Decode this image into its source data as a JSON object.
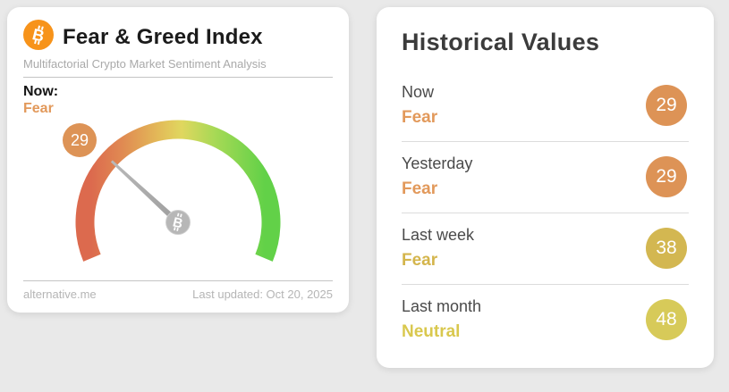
{
  "colors": {
    "page_bg": "#E9E9E9",
    "card_bg": "#FFFFFF",
    "bitcoin_orange": "#F7931A",
    "fear_orange_text": "#E2995B",
    "gold_text": "#D4B54C",
    "yellow_text": "#D9C84E",
    "badge_orange": "#DD9356",
    "badge_gold": "#D3B751",
    "badge_yellow": "#D7CA59",
    "needle_gray": "#A8A8A8",
    "gauge_gradient": [
      "#DC6A4E",
      "#E08A52",
      "#E3B858",
      "#E0D75F",
      "#A5D955",
      "#62D148"
    ]
  },
  "gauge_card": {
    "title": "Fear & Greed Index",
    "subtitle": "Multifactorial Crypto Market Sentiment Analysis",
    "now_label": "Now:",
    "now_classification": "Fear",
    "value_badge": "29",
    "source": "alternative.me",
    "last_updated": "Last updated: Oct 20, 2025"
  },
  "historical_card": {
    "title": "Historical Values",
    "rows": [
      {
        "label": "Now",
        "classification": "Fear",
        "value": "29"
      },
      {
        "label": "Yesterday",
        "classification": "Fear",
        "value": "29"
      },
      {
        "label": "Last week",
        "classification": "Fear",
        "value": "38"
      },
      {
        "label": "Last month",
        "classification": "Neutral",
        "value": "48"
      }
    ]
  },
  "chart_data": {
    "type": "gauge",
    "title": "Fear & Greed Index",
    "value": 29,
    "classification": "Fear",
    "range": [
      0,
      100
    ],
    "arc_degrees": 225,
    "color_scale": "0 = red (Extreme Fear) through yellow (Neutral) to 100 = green (Extreme Greed)",
    "historical": [
      {
        "label": "Now",
        "value": 29,
        "classification": "Fear"
      },
      {
        "label": "Yesterday",
        "value": 29,
        "classification": "Fear"
      },
      {
        "label": "Last week",
        "value": 38,
        "classification": "Fear"
      },
      {
        "label": "Last month",
        "value": 48,
        "classification": "Neutral"
      }
    ]
  }
}
